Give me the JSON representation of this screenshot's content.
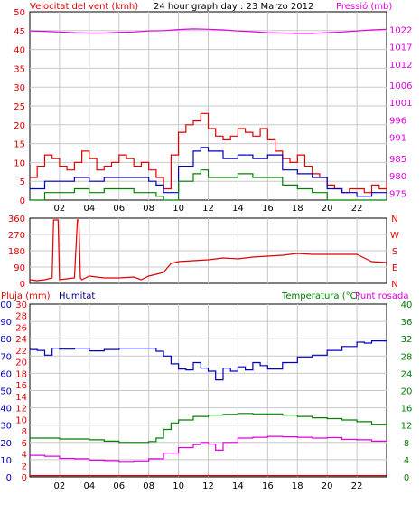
{
  "header": {
    "left_title": "Velocitat del vent (kmh)",
    "center_title": "24 hour graph day : 23 Marzo 2012",
    "right_title": "Pressió (mb)"
  },
  "colors": {
    "background": "#ffffff",
    "border": "#000000",
    "grid": "#c8c8c8",
    "wind": "#e00000",
    "wind_avg": "#0000c0",
    "wind_low": "#008000",
    "pressure": "#e000e0",
    "direction": "#e00000",
    "rain": "#e00000",
    "humidity": "#0000c0",
    "temperature": "#008000",
    "dewpoint": "#e000e0"
  },
  "chart_data": [
    {
      "id": "wind_pressure",
      "type": "line",
      "x_tick_labels": [
        "02",
        "04",
        "06",
        "08",
        "10",
        "12",
        "14",
        "16",
        "18",
        "20",
        "22"
      ],
      "x_range": [
        0,
        24
      ],
      "grid": true,
      "left_axis": {
        "label": "Velocitat del vent (kmh)",
        "range": [
          0,
          50
        ],
        "ticks": [
          "0",
          "5",
          "10",
          "15",
          "20",
          "25",
          "30",
          "35",
          "40",
          "45",
          "50"
        ]
      },
      "right_axis": {
        "label": "Pressió (mb)",
        "range": [
          973,
          1027
        ],
        "ticks": [
          "975",
          "980",
          "985",
          "991",
          "996",
          "1001",
          "1006",
          "1012",
          "1017",
          "1022"
        ]
      },
      "series": [
        {
          "name": "Velocitat del vent (kmh)",
          "color_key": "wind",
          "axis": "left",
          "x": [
            0,
            0.5,
            1,
            1.5,
            2,
            2.5,
            3,
            3.5,
            4,
            4.5,
            5,
            5.5,
            6,
            6.5,
            7,
            7.5,
            8,
            8.5,
            9,
            9.5,
            10,
            10.5,
            11,
            11.5,
            12,
            12.5,
            13,
            13.5,
            14,
            14.5,
            15,
            15.5,
            16,
            16.5,
            17,
            17.5,
            18,
            18.5,
            19,
            19.5,
            20,
            20.5,
            21,
            21.5,
            22,
            22.5,
            23,
            23.5,
            24
          ],
          "values": [
            6,
            9,
            12,
            11,
            9,
            8,
            10,
            13,
            11,
            8,
            9,
            10,
            12,
            11,
            9,
            10,
            8,
            6,
            3,
            12,
            18,
            20,
            21,
            23,
            19,
            17,
            16,
            17,
            19,
            18,
            17,
            19,
            16,
            13,
            11,
            10,
            12,
            9,
            7,
            6,
            4,
            3,
            2,
            3,
            3,
            2,
            4,
            3,
            5
          ]
        },
        {
          "name": "Velocitat mitjana",
          "color_key": "wind_avg",
          "axis": "left",
          "x": [
            0,
            1,
            2,
            3,
            4,
            5,
            6,
            7,
            8,
            8.5,
            9,
            10,
            11,
            11.5,
            12,
            13,
            14,
            15,
            16,
            17,
            18,
            19,
            20,
            21,
            22,
            23,
            24
          ],
          "values": [
            3,
            5,
            5,
            6,
            5,
            6,
            6,
            6,
            5,
            4,
            2,
            9,
            13,
            14,
            13,
            11,
            12,
            11,
            12,
            8,
            7,
            6,
            3,
            2,
            1,
            2,
            2
          ]
        },
        {
          "name": "Ràfega mínima",
          "color_key": "wind_low",
          "axis": "left",
          "x": [
            0,
            1,
            2,
            3,
            4,
            5,
            6,
            7,
            8,
            8.5,
            9,
            10,
            11,
            11.5,
            12,
            13,
            14,
            15,
            16,
            17,
            18,
            19,
            20,
            21,
            22,
            23,
            24
          ],
          "values": [
            0,
            2,
            2,
            3,
            2,
            3,
            3,
            2,
            2,
            1,
            0,
            5,
            7,
            8,
            6,
            6,
            7,
            6,
            6,
            4,
            3,
            2,
            0,
            0,
            0,
            0,
            0
          ]
        },
        {
          "name": "Pressió (mb)",
          "color_key": "pressure",
          "axis": "right",
          "x": [
            0,
            1,
            2,
            3,
            4,
            5,
            6,
            7,
            8,
            9,
            10,
            11,
            12,
            13,
            14,
            15,
            16,
            17,
            18,
            19,
            20,
            21,
            22,
            23,
            24
          ],
          "values": [
            1021.5,
            1021.4,
            1021.2,
            1021.0,
            1020.9,
            1020.9,
            1021.1,
            1021.2,
            1021.5,
            1021.6,
            1021.9,
            1022.1,
            1022.0,
            1021.8,
            1021.5,
            1021.3,
            1021.0,
            1020.9,
            1020.8,
            1020.8,
            1021.0,
            1021.2,
            1021.5,
            1021.8,
            1022.0
          ]
        }
      ]
    },
    {
      "id": "wind_direction",
      "type": "line",
      "x_range": [
        0,
        24
      ],
      "grid": true,
      "left_axis": {
        "range": [
          0,
          360
        ],
        "ticks": [
          "0",
          "90",
          "180",
          "270",
          "360"
        ]
      },
      "right_axis": {
        "ticks": [
          "N",
          "E",
          "S",
          "W",
          "N"
        ]
      },
      "series": [
        {
          "name": "Direcció",
          "color_key": "direction",
          "x": [
            0,
            0.5,
            1,
            1.5,
            1.6,
            1.7,
            1.8,
            1.9,
            2,
            2.5,
            3,
            3.2,
            3.3,
            3.4,
            3.5,
            4,
            5,
            6,
            7,
            7.5,
            8,
            8.5,
            9,
            9.5,
            10,
            11,
            12,
            13,
            14,
            15,
            16,
            17,
            18,
            19,
            20,
            21,
            22,
            22.5,
            23,
            24
          ],
          "values": [
            20,
            15,
            20,
            30,
            350,
            350,
            350,
            350,
            20,
            25,
            30,
            350,
            350,
            30,
            20,
            40,
            30,
            30,
            35,
            20,
            40,
            50,
            60,
            110,
            120,
            125,
            130,
            140,
            135,
            145,
            150,
            155,
            165,
            160,
            160,
            160,
            160,
            140,
            120,
            115
          ]
        }
      ]
    },
    {
      "id": "rain_humidity_temp",
      "type": "line",
      "x_tick_labels": [
        "02",
        "04",
        "06",
        "08",
        "10",
        "12",
        "14",
        "16",
        "18",
        "20",
        "22"
      ],
      "x_range": [
        0,
        24
      ],
      "grid": true,
      "header_labels": {
        "rain": "Pluja (mm)",
        "humidity": "Humitat",
        "temp": "Temperatura (°C)",
        "dew": "Punt rosada"
      },
      "rain_axis": {
        "ticks": [
          "0",
          "2",
          "4",
          "6",
          "8",
          "10",
          "12",
          "14",
          "16",
          "18",
          "20",
          "22",
          "24",
          "26",
          "28",
          "30"
        ]
      },
      "humidity_axis": {
        "ticks": [
          "0",
          "10",
          "20",
          "30",
          "40",
          "50",
          "60",
          "70",
          "80",
          "90",
          "100"
        ]
      },
      "temp_axis": {
        "range": [
          0,
          40
        ],
        "ticks": [
          "0",
          "4",
          "8",
          "12",
          "16",
          "20",
          "24",
          "28",
          "32",
          "36",
          "40"
        ]
      },
      "series": [
        {
          "name": "Pluja (mm)",
          "color_key": "rain",
          "axis": "temp",
          "x": [
            0,
            24
          ],
          "values": [
            0.3,
            0.3
          ]
        },
        {
          "name": "Humitat",
          "color_key": "humidity",
          "axis": "temp",
          "x": [
            0,
            0.5,
            1,
            1.5,
            2,
            3,
            4,
            5,
            6,
            7,
            8,
            8.5,
            9,
            9.5,
            10,
            10.5,
            11,
            11.5,
            12,
            12.5,
            13,
            13.5,
            14,
            14.5,
            15,
            15.5,
            16,
            17,
            18,
            19,
            20,
            21,
            22,
            22.5,
            23,
            24
          ],
          "values": [
            29.5,
            29.3,
            28.2,
            29.8,
            29.6,
            29.8,
            29.2,
            29.5,
            29.8,
            29.8,
            29.8,
            29.1,
            28,
            26.2,
            25,
            24.8,
            26.5,
            25.2,
            24.5,
            22.5,
            25.2,
            24.5,
            25.5,
            24.8,
            26.5,
            25.8,
            25,
            26.5,
            27.8,
            28.2,
            29.3,
            30.2,
            31.2,
            31,
            31.5,
            31.8
          ]
        },
        {
          "name": "Temperatura (°C)",
          "color_key": "temperature",
          "axis": "temp",
          "x": [
            0,
            1,
            2,
            3,
            4,
            5,
            6,
            7,
            8,
            8.5,
            9,
            9.5,
            10,
            11,
            12,
            13,
            14,
            15,
            16,
            17,
            18,
            19,
            20,
            21,
            22,
            23,
            24
          ],
          "values": [
            9,
            9,
            8.8,
            8.8,
            8.6,
            8.3,
            8,
            8,
            8.2,
            9,
            11,
            12.5,
            13.2,
            14,
            14.3,
            14.5,
            14.7,
            14.6,
            14.6,
            14.3,
            14,
            13.7,
            13.5,
            13.2,
            12.8,
            12.2,
            11.7
          ]
        },
        {
          "name": "Punt rosada",
          "color_key": "dewpoint",
          "axis": "temp",
          "x": [
            0,
            1,
            2,
            3,
            4,
            5,
            6,
            7,
            8,
            9,
            10,
            11,
            11.5,
            12,
            12.5,
            13,
            14,
            15,
            16,
            17,
            18,
            19,
            20,
            21,
            22,
            23,
            24
          ],
          "values": [
            5,
            4.8,
            4.3,
            4.2,
            3.9,
            3.8,
            3.6,
            3.7,
            4.2,
            5.5,
            6.8,
            7.5,
            8,
            7.6,
            6.2,
            8,
            9,
            9.2,
            9.4,
            9.3,
            9.2,
            9,
            9.1,
            8.7,
            8.6,
            8.3,
            8.5
          ]
        }
      ]
    }
  ]
}
